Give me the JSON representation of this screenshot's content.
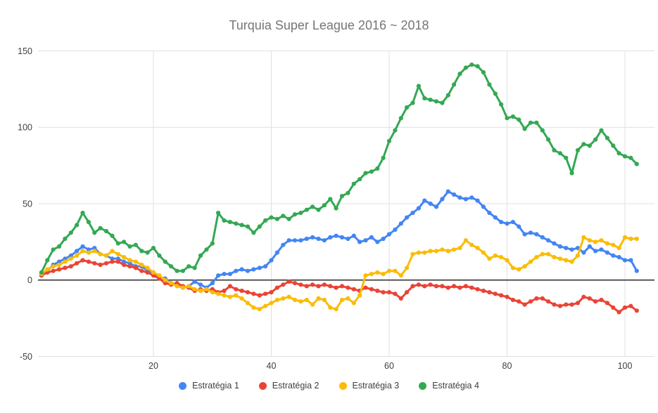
{
  "chart_data": {
    "type": "line",
    "title": "Turquia Super League 2016 ~ 2018",
    "x_first": 1,
    "x_last": 102,
    "x_step": 1,
    "xlabel": "",
    "ylabel": "",
    "xlim": [
      0.4,
      105
    ],
    "ylim": [
      -50,
      150
    ],
    "xticks": [
      20,
      40,
      60,
      80,
      100
    ],
    "yticks": [
      150,
      100,
      50,
      0,
      -50
    ],
    "grid": true,
    "baseline": 0,
    "legend_position": "bottom",
    "series": [
      {
        "name": "Estratégia 1",
        "color": "#4285F4",
        "values": [
          3,
          6,
          10,
          12,
          14,
          16,
          19,
          22,
          20,
          21,
          17,
          16,
          14,
          14,
          12,
          11,
          9,
          9,
          6,
          5,
          2,
          1,
          -2,
          -3,
          -5,
          -4,
          -1,
          -3,
          -5,
          -2,
          3,
          4,
          4,
          6,
          7,
          6,
          7,
          8,
          9,
          13,
          18,
          23,
          26,
          26,
          26,
          27,
          28,
          27,
          26,
          28,
          29,
          28,
          27,
          29,
          25,
          26,
          28,
          25,
          27,
          30,
          33,
          37,
          41,
          44,
          47,
          52,
          50,
          48,
          53,
          58,
          56,
          54,
          53,
          54,
          52,
          48,
          44,
          41,
          38,
          37,
          38,
          35,
          30,
          31,
          30,
          28,
          26,
          24,
          22,
          21,
          20,
          21,
          18,
          22,
          19,
          20,
          18,
          16,
          15,
          13,
          13,
          6
        ]
      },
      {
        "name": "Estratégia 2",
        "color": "#EA4335",
        "values": [
          3,
          5,
          6,
          7,
          8,
          9,
          11,
          13,
          12,
          11,
          10,
          11,
          12,
          12,
          10,
          9,
          8,
          6,
          5,
          3,
          1,
          -2,
          -3,
          -2,
          -4,
          -5,
          -7,
          -6,
          -7,
          -6,
          -8,
          -7,
          -4,
          -6,
          -7,
          -8,
          -9,
          -10,
          -9,
          -8,
          -5,
          -3,
          -1,
          -2,
          -3,
          -4,
          -3,
          -4,
          -3,
          -4,
          -5,
          -4,
          -5,
          -6,
          -7,
          -5,
          -6,
          -7,
          -8,
          -8,
          -9,
          -12,
          -8,
          -4,
          -3,
          -4,
          -3,
          -4,
          -4,
          -5,
          -4,
          -5,
          -4,
          -5,
          -6,
          -7,
          -8,
          -9,
          -10,
          -11,
          -13,
          -14,
          -16,
          -14,
          -12,
          -12,
          -14,
          -16,
          -17,
          -16,
          -16,
          -15,
          -11,
          -12,
          -14,
          -13,
          -15,
          -18,
          -21,
          -18,
          -17,
          -20
        ]
      },
      {
        "name": "Estratégia 3",
        "color": "#FBBC04",
        "values": [
          4,
          7,
          9,
          10,
          12,
          14,
          16,
          19,
          18,
          19,
          17,
          16,
          19,
          17,
          15,
          13,
          12,
          10,
          8,
          5,
          3,
          0,
          -2,
          -4,
          -5,
          -4,
          -6,
          -7,
          -6,
          -8,
          -9,
          -10,
          -11,
          -10,
          -12,
          -15,
          -18,
          -19,
          -17,
          -15,
          -13,
          -12,
          -11,
          -13,
          -14,
          -13,
          -16,
          -12,
          -13,
          -18,
          -19,
          -13,
          -12,
          -15,
          -10,
          3,
          4,
          5,
          4,
          6,
          6,
          3,
          8,
          17,
          18,
          18,
          19,
          19,
          20,
          19,
          20,
          21,
          26,
          23,
          21,
          18,
          14,
          16,
          15,
          13,
          8,
          7,
          9,
          12,
          15,
          17,
          17,
          15,
          14,
          13,
          12,
          16,
          28,
          26,
          25,
          26,
          24,
          23,
          21,
          28,
          27,
          27
        ]
      },
      {
        "name": "Estratégia 4",
        "color": "#34A853",
        "values": [
          5,
          13,
          20,
          22,
          27,
          31,
          36,
          44,
          38,
          31,
          34,
          32,
          29,
          24,
          25,
          22,
          23,
          19,
          18,
          21,
          16,
          12,
          9,
          6,
          6,
          9,
          8,
          16,
          20,
          24,
          44,
          39,
          38,
          37,
          36,
          35,
          31,
          35,
          39,
          41,
          40,
          42,
          40,
          43,
          44,
          46,
          48,
          46,
          49,
          53,
          47,
          55,
          57,
          63,
          66,
          70,
          71,
          73,
          80,
          91,
          98,
          106,
          113,
          116,
          127,
          119,
          118,
          117,
          116,
          121,
          128,
          135,
          139,
          141,
          140,
          136,
          128,
          122,
          115,
          106,
          107,
          105,
          99,
          103,
          103,
          98,
          92,
          85,
          83,
          80,
          70,
          85,
          89,
          88,
          92,
          98,
          93,
          88,
          83,
          81,
          80,
          76
        ]
      }
    ],
    "colors": {
      "grid": "#e0e0e0",
      "baseline": "#000000",
      "tick_label": "#3c4043",
      "title": "#757575",
      "background": "#ffffff"
    }
  }
}
